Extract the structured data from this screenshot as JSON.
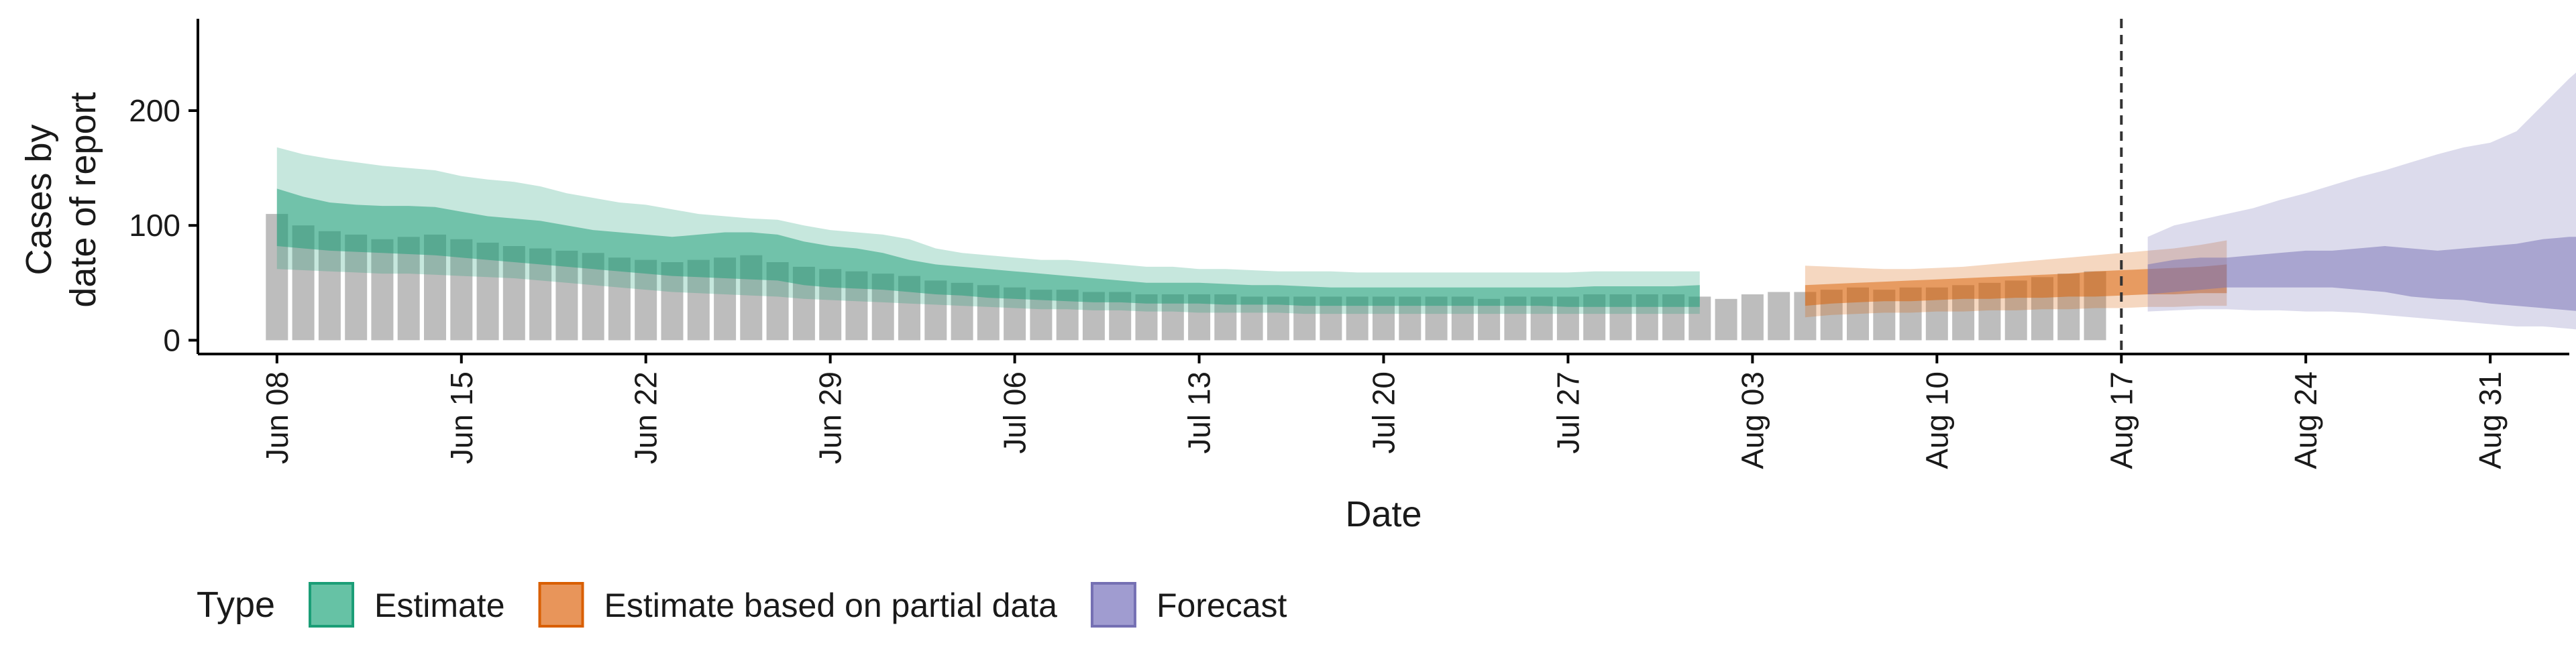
{
  "chart_data": {
    "type": "area",
    "title": "",
    "xlabel": "Date",
    "ylabel_lines": [
      "Cases by",
      "date of report"
    ],
    "ylim": [
      -12,
      280
    ],
    "yticks": [
      0,
      100,
      200
    ],
    "x_start_date": "2020-06-05",
    "x_end_date": "2020-09-03",
    "xticks": [
      {
        "date": "2020-06-08",
        "label": "Jun 08"
      },
      {
        "date": "2020-06-15",
        "label": "Jun 15"
      },
      {
        "date": "2020-06-22",
        "label": "Jun 22"
      },
      {
        "date": "2020-06-29",
        "label": "Jun 29"
      },
      {
        "date": "2020-07-06",
        "label": "Jul 06"
      },
      {
        "date": "2020-07-13",
        "label": "Jul 13"
      },
      {
        "date": "2020-07-20",
        "label": "Jul 20"
      },
      {
        "date": "2020-07-27",
        "label": "Jul 27"
      },
      {
        "date": "2020-08-03",
        "label": "Aug 03"
      },
      {
        "date": "2020-08-10",
        "label": "Aug 10"
      },
      {
        "date": "2020-08-17",
        "label": "Aug 17"
      },
      {
        "date": "2020-08-24",
        "label": "Aug 24"
      },
      {
        "date": "2020-08-31",
        "label": "Aug 31"
      }
    ],
    "vline_date": "2020-08-17",
    "legend": {
      "title": "Type",
      "position": "bottom",
      "entries": [
        {
          "label": "Estimate",
          "fill": "#66c2a5",
          "stroke": "#1b9e77"
        },
        {
          "label": "Estimate based on partial data",
          "fill": "#e8955a",
          "stroke": "#d95f02"
        },
        {
          "label": "Forecast",
          "fill": "#a09cd0",
          "stroke": "#7570b3"
        }
      ]
    },
    "colors": {
      "bars": "#bdbdbd",
      "estimate": "#1b9e77",
      "partial": "#d95f02",
      "forecast": "#7570b3",
      "vline": "#333333"
    },
    "reported_cases": {
      "start_date": "2020-06-08",
      "values": [
        110,
        100,
        95,
        92,
        88,
        90,
        92,
        88,
        85,
        82,
        80,
        78,
        76,
        72,
        70,
        68,
        70,
        72,
        74,
        68,
        64,
        62,
        60,
        58,
        56,
        52,
        50,
        48,
        46,
        44,
        44,
        42,
        42,
        40,
        40,
        40,
        40,
        38,
        38,
        38,
        38,
        38,
        38,
        38,
        38,
        38,
        36,
        38,
        38,
        38,
        40,
        40,
        40,
        40,
        38,
        36,
        40,
        42,
        42,
        44,
        46,
        44,
        46,
        46,
        48,
        50,
        52,
        55,
        58,
        60
      ]
    },
    "series": [
      {
        "name": "Estimate",
        "start_date": "2020-06-08",
        "median": [
          100,
          95,
          92,
          90,
          88,
          87,
          86,
          85,
          84,
          82,
          80,
          78,
          76,
          74,
          72,
          70,
          69,
          68,
          67,
          66,
          62,
          60,
          58,
          56,
          54,
          52,
          50,
          48,
          46,
          45,
          44,
          43,
          42,
          41,
          41,
          40,
          40,
          39,
          39,
          39,
          38,
          38,
          38,
          38,
          38,
          38,
          38,
          38,
          38,
          38,
          39,
          39,
          39,
          39,
          39
        ],
        "lower50": [
          82,
          80,
          78,
          77,
          76,
          75,
          74,
          72,
          70,
          68,
          66,
          64,
          62,
          60,
          58,
          56,
          55,
          54,
          53,
          52,
          48,
          46,
          45,
          44,
          42,
          40,
          39,
          37,
          36,
          35,
          34,
          33,
          33,
          32,
          32,
          32,
          31,
          31,
          31,
          30,
          30,
          30,
          30,
          30,
          30,
          30,
          30,
          30,
          30,
          29,
          29,
          29,
          29,
          29,
          29
        ],
        "upper50": [
          132,
          125,
          120,
          118,
          117,
          117,
          116,
          112,
          108,
          106,
          104,
          100,
          96,
          94,
          92,
          90,
          92,
          94,
          94,
          92,
          86,
          82,
          80,
          76,
          70,
          66,
          64,
          62,
          60,
          58,
          56,
          54,
          52,
          50,
          50,
          50,
          49,
          48,
          48,
          47,
          46,
          46,
          46,
          46,
          46,
          46,
          46,
          46,
          46,
          46,
          47,
          47,
          47,
          47,
          48
        ],
        "lower90": [
          62,
          61,
          60,
          59,
          58,
          58,
          57,
          56,
          55,
          54,
          52,
          50,
          48,
          46,
          44,
          42,
          41,
          40,
          39,
          38,
          36,
          35,
          34,
          33,
          32,
          31,
          30,
          29,
          28,
          27,
          27,
          26,
          26,
          25,
          25,
          24,
          24,
          24,
          24,
          23,
          23,
          23,
          23,
          23,
          23,
          23,
          23,
          23,
          23,
          23,
          23,
          23,
          23,
          23,
          23
        ],
        "upper90": [
          168,
          162,
          158,
          155,
          152,
          150,
          148,
          143,
          140,
          138,
          134,
          128,
          124,
          120,
          118,
          114,
          110,
          108,
          106,
          105,
          100,
          96,
          94,
          92,
          88,
          80,
          76,
          74,
          72,
          70,
          70,
          68,
          66,
          64,
          64,
          62,
          62,
          61,
          60,
          60,
          60,
          59,
          59,
          59,
          59,
          59,
          59,
          59,
          59,
          59,
          60,
          60,
          60,
          60,
          60
        ]
      },
      {
        "name": "Estimate based on partial data",
        "start_date": "2020-08-05",
        "median": [
          38,
          40,
          42,
          42,
          43,
          44,
          44,
          45,
          46,
          46,
          47,
          48,
          49,
          50,
          51,
          52,
          53
        ],
        "lower50": [
          30,
          32,
          33,
          34,
          34,
          35,
          36,
          36,
          37,
          37,
          38,
          38,
          39,
          40,
          40,
          41,
          41
        ],
        "upper50": [
          48,
          49,
          50,
          51,
          52,
          53,
          54,
          55,
          56,
          57,
          58,
          60,
          61,
          62,
          63,
          64,
          66
        ],
        "lower90": [
          20,
          22,
          23,
          24,
          24,
          25,
          25,
          26,
          26,
          27,
          27,
          28,
          28,
          29,
          29,
          30,
          30
        ],
        "upper90": [
          65,
          64,
          63,
          62,
          62,
          63,
          64,
          66,
          68,
          70,
          72,
          74,
          76,
          78,
          80,
          83,
          87
        ]
      },
      {
        "name": "Forecast",
        "start_date": "2020-08-18",
        "median": [
          55,
          56,
          58,
          60,
          62,
          64,
          66,
          67,
          69,
          70,
          70,
          68,
          66,
          64,
          65,
          68,
          70,
          71,
          72
        ],
        "lower50": [
          40,
          42,
          44,
          46,
          46,
          46,
          46,
          46,
          44,
          42,
          38,
          36,
          35,
          32,
          30,
          28,
          26,
          24,
          22
        ],
        "upper50": [
          66,
          70,
          72,
          72,
          74,
          76,
          78,
          78,
          80,
          82,
          80,
          78,
          80,
          82,
          84,
          88,
          90,
          90,
          92
        ],
        "lower90": [
          25,
          26,
          27,
          27,
          26,
          26,
          25,
          25,
          24,
          22,
          20,
          18,
          16,
          14,
          12,
          12,
          10,
          8,
          8
        ],
        "upper90": [
          90,
          100,
          105,
          110,
          115,
          122,
          128,
          135,
          142,
          148,
          155,
          162,
          168,
          172,
          182,
          205,
          228,
          248,
          265
        ]
      }
    ]
  }
}
